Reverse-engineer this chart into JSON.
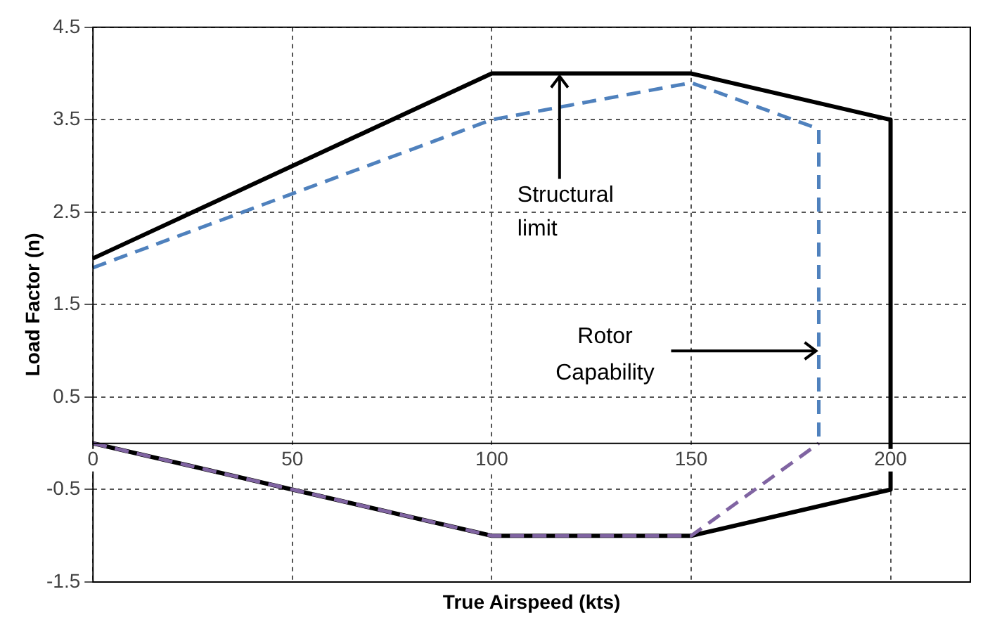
{
  "chart_data": {
    "type": "line",
    "xlabel": "True Airspeed (kts)",
    "ylabel": "Load Factor (n)",
    "series": [
      {
        "color": "#000000",
        "line_style": "solid",
        "x": [
          0,
          100,
          150,
          200,
          200,
          150,
          100,
          0
        ],
        "values": [
          2,
          4,
          4,
          3.5,
          -0.5,
          -1,
          -1,
          0
        ]
      },
      {
        "color": "#4f81bd",
        "line_style": "dashed",
        "x": [
          0,
          100,
          150,
          182,
          182
        ],
        "values": [
          1.9,
          3.5,
          3.9,
          3.4,
          0
        ]
      },
      {
        "color": "#8064a2",
        "line_style": "dashed",
        "x": [
          0,
          100,
          150,
          182
        ],
        "values": [
          0,
          -1,
          -1,
          0
        ]
      }
    ],
    "xlim": [
      0,
      220
    ],
    "xticks": [
      0,
      50,
      100,
      150,
      200
    ],
    "ylim": [
      -1.5,
      4.5
    ],
    "yticks": [
      -1.5,
      -0.5,
      0.5,
      1.5,
      2.5,
      3.5,
      4.5
    ],
    "grid": true,
    "legend": false,
    "marker": "none",
    "annotations": [
      {
        "text": "Structural limit",
        "x": 117,
        "y": 4
      },
      {
        "text": "Rotor Capability",
        "x": 182,
        "y": 1
      }
    ]
  }
}
